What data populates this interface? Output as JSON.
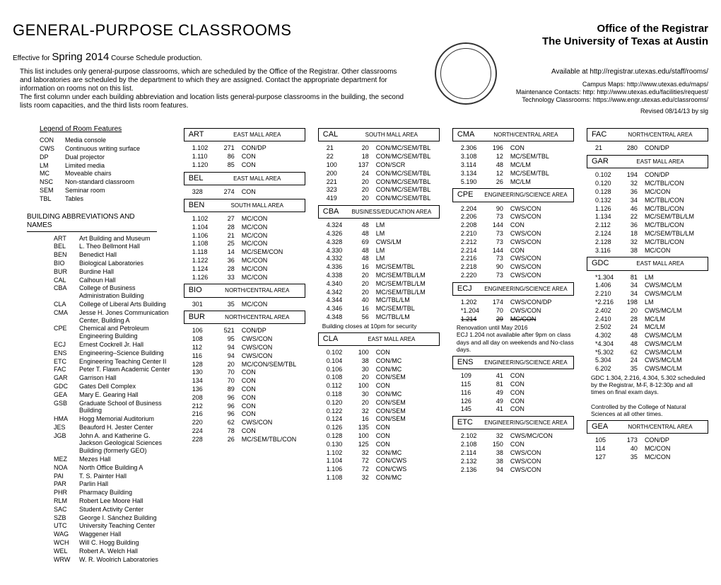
{
  "title_main": "GENERAL-PURPOSE CLASSROOMS",
  "title_office": "Office of the Registrar",
  "title_univ": "The University of Texas at Austin",
  "effective_prefix": "Effective for ",
  "effective_term": "Spring 2014",
  "effective_suffix": " Course Schedule production.",
  "intro_para": "This list includes only general-purpose classrooms, which are scheduled by the Office of the Registrar. Other classrooms and laboratories are scheduled by the department to which they are assigned. Contact the appropriate department for information on rooms not on this list.\nThe first column under each building abbreviation and location lists general-purpose classrooms in the building, the second lists room capacities, and the third lists room features.",
  "available": "Available at http://registrar.utexas.edu/staff/rooms/",
  "campus_maps": "Campus Maps: http://www.utexas.edu/maps/",
  "maint": "Maintenance Contacts: http: http://www.utexas.edu/facilities/request/",
  "tech": "Technology Classrooms: https://www.engr.utexas.edu/classrooms/",
  "revised": "Revised 08/14/13 by slg",
  "legend_title": "Legend of Room Features",
  "legend": [
    {
      "k": "CON",
      "v": "Media console"
    },
    {
      "k": "CWS",
      "v": "Continuous writing surface"
    },
    {
      "k": "DP",
      "v": "Dual projector"
    },
    {
      "k": "LM",
      "v": "Limited media"
    },
    {
      "k": "MC",
      "v": "Moveable chairs"
    },
    {
      "k": "NSC",
      "v": "Non-standard classroom"
    },
    {
      "k": "SEM",
      "v": "Seminar room"
    },
    {
      "k": "TBL",
      "v": "Tables"
    }
  ],
  "abbr_title": "BUILDING ABBREVIATIONS AND NAMES",
  "abbrs": [
    {
      "k": "ART",
      "v": "Art Building and Museum"
    },
    {
      "k": "BEL",
      "v": "L. Theo Bellmont Hall"
    },
    {
      "k": "BEN",
      "v": "Benedict Hall"
    },
    {
      "k": "BIO",
      "v": "Biological Laboratories"
    },
    {
      "k": "BUR",
      "v": "Burdine Hall"
    },
    {
      "k": "CAL",
      "v": "Calhoun Hall"
    },
    {
      "k": "CBA",
      "v": "College of Business Administration Building"
    },
    {
      "k": "CLA",
      "v": "College of Liberal Arts Building"
    },
    {
      "k": "CMA",
      "v": "Jesse H. Jones Communication Center, Building A"
    },
    {
      "k": "CPE",
      "v": "Chemical and Petroleum Engineering Building"
    },
    {
      "k": "ECJ",
      "v": "Ernest Cockrell Jr. Hall"
    },
    {
      "k": "ENS",
      "v": "Engineering–Science Building"
    },
    {
      "k": "ETC",
      "v": "Engineering Teaching Center II"
    },
    {
      "k": "FAC",
      "v": "Peter T. Flawn Academic Center"
    },
    {
      "k": "GAR",
      "v": "Garrison Hall"
    },
    {
      "k": "GDC",
      "v": "Gates Dell Complex"
    },
    {
      "k": "GEA",
      "v": "Mary E. Gearing Hall"
    },
    {
      "k": "GSB",
      "v": "Graduate School of Business Building"
    },
    {
      "k": "HMA",
      "v": "Hogg Memorial Auditorium"
    },
    {
      "k": "JES",
      "v": "Beauford H. Jester Center"
    },
    {
      "k": "JGB",
      "v": "John A. and Katherine G. Jackson Geological Sciences Building (formerly GEO)"
    },
    {
      "k": "MEZ",
      "v": "Mezes Hall"
    },
    {
      "k": "NOA",
      "v": "North Office Building A"
    },
    {
      "k": "PAI",
      "v": "T. S. Painter Hall"
    },
    {
      "k": "PAR",
      "v": "Parlin Hall"
    },
    {
      "k": "PHR",
      "v": "Pharmacy Building"
    },
    {
      "k": "RLM",
      "v": "Robert Lee Moore Hall"
    },
    {
      "k": "SAC",
      "v": "Student Activity Center"
    },
    {
      "k": "SZB",
      "v": "George I. Sánchez Building"
    },
    {
      "k": "UTC",
      "v": "University Teaching Center"
    },
    {
      "k": "WAG",
      "v": "Waggener Hall"
    },
    {
      "k": "WCH",
      "v": "Will C. Hogg Building"
    },
    {
      "k": "WEL",
      "v": "Robert A. Welch Hall"
    },
    {
      "k": "WRW",
      "v": "W. R. Woolrich Laboratories"
    }
  ],
  "buildings_col2": [
    {
      "code": "ART",
      "area": "EAST MALL AREA",
      "rooms": [
        {
          "r": "1.102",
          "c": "271",
          "f": "CON/DP"
        },
        {
          "r": "1.110",
          "c": "86",
          "f": "CON"
        },
        {
          "r": "1.120",
          "c": "85",
          "f": "CON"
        }
      ]
    },
    {
      "code": "BEL",
      "area": "EAST MALL AREA",
      "rooms": [
        {
          "r": "328",
          "c": "274",
          "f": "CON"
        }
      ]
    },
    {
      "code": "BEN",
      "area": "SOUTH MALL AREA",
      "rooms": [
        {
          "r": "1.102",
          "c": "27",
          "f": "MC/CON"
        },
        {
          "r": "1.104",
          "c": "28",
          "f": "MC/CON"
        },
        {
          "r": "1.106",
          "c": "21",
          "f": "MC/CON"
        },
        {
          "r": "1.108",
          "c": "25",
          "f": "MC/CON"
        },
        {
          "r": "1.118",
          "c": "14",
          "f": "MC/SEM/CON"
        },
        {
          "r": "1.122",
          "c": "36",
          "f": "MC/CON"
        },
        {
          "r": "1.124",
          "c": "28",
          "f": "MC/CON"
        },
        {
          "r": "1.126",
          "c": "33",
          "f": "MC/CON"
        }
      ]
    },
    {
      "code": "BIO",
      "area": "NORTH/CENTRAL AREA",
      "rooms": [
        {
          "r": "301",
          "c": "35",
          "f": "MC/CON"
        }
      ]
    },
    {
      "code": "BUR",
      "area": "NORTH/CENTRAL AREA",
      "rooms": [
        {
          "r": "106",
          "c": "521",
          "f": "CON/DP"
        },
        {
          "r": "108",
          "c": "95",
          "f": "CWS/CON"
        },
        {
          "r": "112",
          "c": "94",
          "f": "CWS/CON"
        },
        {
          "r": "116",
          "c": "94",
          "f": "CWS/CON"
        },
        {
          "r": "128",
          "c": "20",
          "f": "MC/CON/SEM/TBL"
        },
        {
          "r": "130",
          "c": "70",
          "f": "CON"
        },
        {
          "r": "134",
          "c": "70",
          "f": "CON"
        },
        {
          "r": "136",
          "c": "89",
          "f": "CON"
        },
        {
          "r": "208",
          "c": "96",
          "f": "CON"
        },
        {
          "r": "212",
          "c": "96",
          "f": "CON"
        },
        {
          "r": "216",
          "c": "96",
          "f": "CON"
        },
        {
          "r": "220",
          "c": "62",
          "f": "CWS/CON"
        },
        {
          "r": "224",
          "c": "78",
          "f": "CON"
        },
        {
          "r": "228",
          "c": "26",
          "f": "MC/SEM/TBL/CON"
        }
      ]
    }
  ],
  "buildings_col3": [
    {
      "code": "CAL",
      "area": "SOUTH MALL AREA",
      "rooms": [
        {
          "r": "21",
          "c": "20",
          "f": "CON/MC/SEM/TBL"
        },
        {
          "r": "22",
          "c": "18",
          "f": "CON/MC/SEM/TBL"
        },
        {
          "r": "100",
          "c": "137",
          "f": "CON/SCR"
        },
        {
          "r": "200",
          "c": "24",
          "f": "CON/MC/SEM/TBL"
        },
        {
          "r": "221",
          "c": "20",
          "f": "CON/MC/SEM/TBL"
        },
        {
          "r": "323",
          "c": "20",
          "f": "CON/MC/SEM/TBL"
        },
        {
          "r": "419",
          "c": "20",
          "f": "CON/MC/SEM/TBL"
        }
      ]
    },
    {
      "code": "CBA",
      "area": "BUSINESS/EDUCATION AREA",
      "rooms": [
        {
          "r": "4.324",
          "c": "48",
          "f": "LM"
        },
        {
          "r": "4.326",
          "c": "48",
          "f": "LM"
        },
        {
          "r": "4.328",
          "c": "69",
          "f": "CWS/LM"
        },
        {
          "r": "4.330",
          "c": "48",
          "f": "LM"
        },
        {
          "r": "4.332",
          "c": "48",
          "f": "LM"
        },
        {
          "r": "4.336",
          "c": "16",
          "f": "MC/SEM/TBL"
        },
        {
          "r": "4.338",
          "c": "20",
          "f": "MC/SEM/TBL/LM"
        },
        {
          "r": "4.340",
          "c": "20",
          "f": "MC/SEM/TBL/LM"
        },
        {
          "r": "4.342",
          "c": "20",
          "f": "MC/SEM/TBL/LM"
        },
        {
          "r": "4.344",
          "c": "40",
          "f": "MC/TBL/LM"
        },
        {
          "r": "4.346",
          "c": "16",
          "f": "MC/SEM/TBL"
        },
        {
          "r": "4.348",
          "c": "56",
          "f": "MC/TBL/LM"
        }
      ],
      "note": "Building closes at 10pm for security"
    },
    {
      "code": "CLA",
      "area": "EAST MALL AREA",
      "rooms": [
        {
          "r": "0.102",
          "c": "100",
          "f": "CON"
        },
        {
          "r": "0.104",
          "c": "38",
          "f": "CON/MC"
        },
        {
          "r": "0.106",
          "c": "30",
          "f": "CON/MC"
        },
        {
          "r": "0.108",
          "c": "20",
          "f": "CON/SEM"
        },
        {
          "r": "0.112",
          "c": "100",
          "f": "CON"
        },
        {
          "r": "0.118",
          "c": "30",
          "f": "CON/MC"
        },
        {
          "r": "0.120",
          "c": "20",
          "f": "CON/SEM"
        },
        {
          "r": "0.122",
          "c": "32",
          "f": "CON/SEM"
        },
        {
          "r": "0.124",
          "c": "16",
          "f": "CON/SEM"
        },
        {
          "r": "0.126",
          "c": "135",
          "f": "CON"
        },
        {
          "r": "0.128",
          "c": "100",
          "f": "CON"
        },
        {
          "r": "0.130",
          "c": "125",
          "f": "CON"
        },
        {
          "r": "1.102",
          "c": "32",
          "f": "CON/MC"
        },
        {
          "r": "1.104",
          "c": "72",
          "f": "CON/CWS"
        },
        {
          "r": "1.106",
          "c": "72",
          "f": "CON/CWS"
        },
        {
          "r": "1.108",
          "c": "32",
          "f": "CON/MC"
        }
      ]
    }
  ],
  "buildings_col4": [
    {
      "code": "CMA",
      "area": "NORTH/CENTRAL AREA",
      "rooms": [
        {
          "r": "2.306",
          "c": "196",
          "f": "CON"
        },
        {
          "r": "3.108",
          "c": "12",
          "f": "MC/SEM/TBL"
        },
        {
          "r": "3.114",
          "c": "48",
          "f": "MC/LM"
        },
        {
          "r": "3.134",
          "c": "12",
          "f": "MC/SEM/TBL"
        },
        {
          "r": "5.190",
          "c": "26",
          "f": "MC/LM"
        }
      ]
    },
    {
      "code": "CPE",
      "area": "ENGINEERING/SCIENCE AREA",
      "rooms": [
        {
          "r": "2.204",
          "c": "90",
          "f": "CWS/CON"
        },
        {
          "r": "2.206",
          "c": "73",
          "f": "CWS/CON"
        },
        {
          "r": "2.208",
          "c": "144",
          "f": "CON"
        },
        {
          "r": "2.210",
          "c": "73",
          "f": "CWS/CON"
        },
        {
          "r": "2.212",
          "c": "73",
          "f": "CWS/CON"
        },
        {
          "r": "2.214",
          "c": "144",
          "f": "CON"
        },
        {
          "r": "2.216",
          "c": "73",
          "f": "CWS/CON"
        },
        {
          "r": "2.218",
          "c": "90",
          "f": "CWS/CON"
        },
        {
          "r": "2.220",
          "c": "73",
          "f": "CWS/CON"
        }
      ]
    },
    {
      "code": "ECJ",
      "area": "ENGINEERING/SCIENCE AREA",
      "rooms": [
        {
          "r": "1.202",
          "c": "174",
          "f": "CWS/CON/DP"
        },
        {
          "r": "*1.204",
          "c": "70",
          "f": "CWS/CON"
        },
        {
          "r": "1.214",
          "c": "29",
          "f": "MC/CON",
          "strike": true
        }
      ],
      "note": "Renovation until May 2016\nECJ 1.204 not available after 9pm on class days and all day on weekends and No-class days."
    },
    {
      "code": "ENS",
      "area": "ENGINEERING/SCIENCE AREA",
      "rooms": [
        {
          "r": "109",
          "c": "41",
          "f": "CON"
        },
        {
          "r": "115",
          "c": "81",
          "f": "CON"
        },
        {
          "r": "116",
          "c": "49",
          "f": "CON"
        },
        {
          "r": "126",
          "c": "49",
          "f": "CON"
        },
        {
          "r": "145",
          "c": "41",
          "f": "CON"
        }
      ]
    },
    {
      "code": "ETC",
      "area": "ENGINEERING/SCIENCE AREA",
      "rooms": [
        {
          "r": "2.102",
          "c": "32",
          "f": "CWS/MC/CON"
        },
        {
          "r": "2.108",
          "c": "150",
          "f": "CON"
        },
        {
          "r": "2.114",
          "c": "38",
          "f": "CWS/CON"
        },
        {
          "r": "2.132",
          "c": "38",
          "f": "CWS/CON"
        },
        {
          "r": "2.136",
          "c": "94",
          "f": "CWS/CON"
        }
      ]
    }
  ],
  "buildings_col5": [
    {
      "code": "FAC",
      "area": "NORTH/CENTRAL AREA",
      "rooms": [
        {
          "r": "21",
          "c": "280",
          "f": "CON/DP"
        }
      ]
    },
    {
      "code": "GAR",
      "area": "EAST MALL AREA",
      "rooms": [
        {
          "r": "0.102",
          "c": "194",
          "f": "CON/DP"
        },
        {
          "r": "0.120",
          "c": "32",
          "f": "MC/TBL/CON"
        },
        {
          "r": "0.128",
          "c": "36",
          "f": "MC/CON"
        },
        {
          "r": "0.132",
          "c": "34",
          "f": "MC/TBL/CON"
        },
        {
          "r": "1.126",
          "c": "46",
          "f": "MC/TBL/CON"
        },
        {
          "r": "1.134",
          "c": "22",
          "f": "MC/SEM/TBL/LM"
        },
        {
          "r": "2.112",
          "c": "36",
          "f": "MC/TBL/CON"
        },
        {
          "r": "2.124",
          "c": "18",
          "f": "MC/SEM/TBL/LM"
        },
        {
          "r": "2.128",
          "c": "32",
          "f": "MC/TBL/CON"
        },
        {
          "r": "3.116",
          "c": "38",
          "f": "MC/CON"
        }
      ]
    },
    {
      "code": "GDC",
      "area": "EAST MALL AREA",
      "rooms": [
        {
          "r": "*1.304",
          "c": "81",
          "f": "LM"
        },
        {
          "r": "1.406",
          "c": "34",
          "f": "CWS/MC/LM"
        },
        {
          "r": "2.210",
          "c": "34",
          "f": "CWS/MC/LM"
        },
        {
          "r": "*2.216",
          "c": "198",
          "f": "LM"
        },
        {
          "r": "2.402",
          "c": "20",
          "f": "CWS/MC/LM"
        },
        {
          "r": "2.410",
          "c": "28",
          "f": "MC/LM"
        },
        {
          "r": "2.502",
          "c": "24",
          "f": "MC/LM"
        },
        {
          "r": "4.302",
          "c": "48",
          "f": "CWS/MC/LM"
        },
        {
          "r": "*4.304",
          "c": "48",
          "f": "CWS/MC/LM"
        },
        {
          "r": "*5.302",
          "c": "62",
          "f": "CWS/MC/LM"
        },
        {
          "r": "5.304",
          "c": "24",
          "f": "CWS/MC/LM"
        },
        {
          "r": "6.202",
          "c": "35",
          "f": "CWS/MC/LM"
        }
      ],
      "note": "GDC 1.304, 2.216, 4.304, 5.302 scheduled by the Registrar, M-F, 8-12:30p and all times on final exam days.\n\nControlled by the College of Natural Sciences at all other times."
    },
    {
      "code": "GEA",
      "area": "NORTH/CENTRAL AREA",
      "rooms": [
        {
          "r": "105",
          "c": "173",
          "f": "CON/DP"
        },
        {
          "r": "114",
          "c": "40",
          "f": "MC/CON"
        },
        {
          "r": "127",
          "c": "35",
          "f": "MC/CON"
        }
      ]
    }
  ]
}
